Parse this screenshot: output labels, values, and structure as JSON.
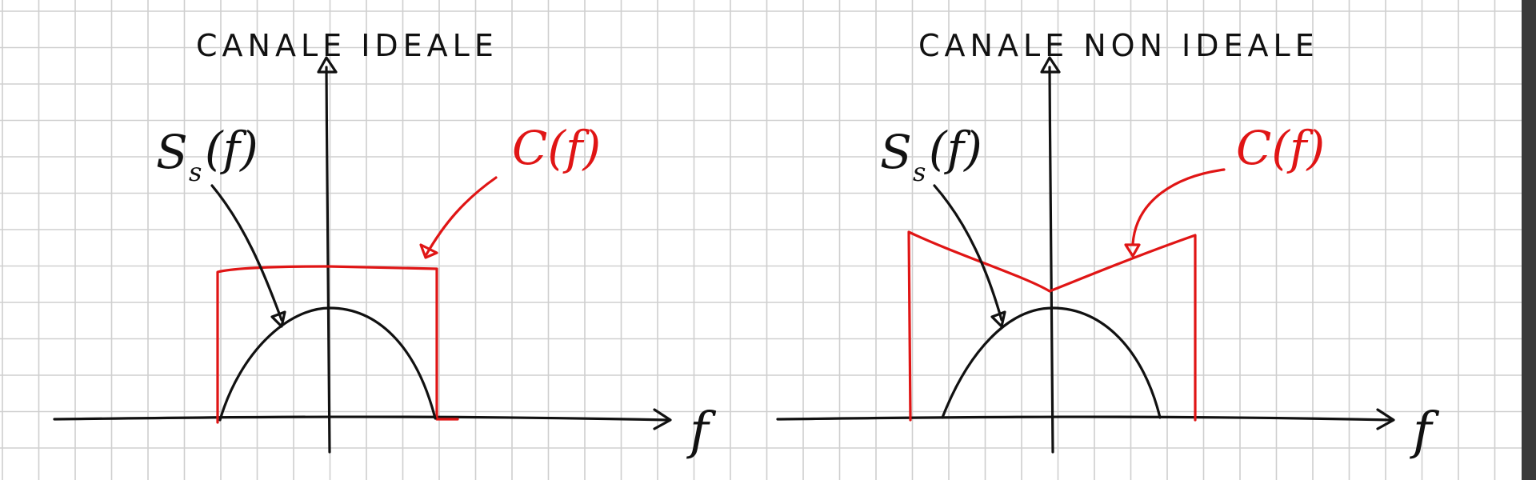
{
  "diagrams": {
    "ideal": {
      "title": "CANALE IDEALE",
      "signal_label": "S",
      "signal_subscript": "s",
      "signal_arg": "(f)",
      "channel_label": "C(f)",
      "axis_label": "f"
    },
    "non_ideal": {
      "title": "CANALE NON IDEALE",
      "signal_label": "S",
      "signal_subscript": "s",
      "signal_arg": "(f)",
      "channel_label": "C(f)",
      "axis_label": "f"
    }
  },
  "colors": {
    "ink": "#111111",
    "channel": "#e01515",
    "grid": "#cfcfcf",
    "scrollbar": "#3a3a3a"
  }
}
